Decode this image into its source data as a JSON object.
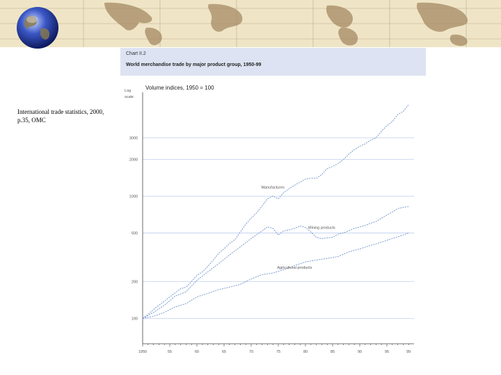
{
  "source_note": "International trade statistics, 2000, p.35, OMC",
  "chart_data": {
    "number": "Chart II.2",
    "title": "World merchandise trade by major product group, 1950-99",
    "subtitle": "Volume indices, 1950 = 100",
    "ylabel": "Log scale",
    "type": "line",
    "yscale": "log",
    "ylim": [
      62,
      6700
    ],
    "xlim": [
      1950,
      2000
    ],
    "grid": true,
    "y_ticks": [
      100,
      200,
      500,
      1000,
      2000,
      3000
    ],
    "y_tick_labels": [
      "100",
      "200",
      "500",
      "1000",
      "2000",
      "3000"
    ],
    "x_ticks": [
      1950,
      1955,
      1960,
      1965,
      1970,
      1975,
      1980,
      1985,
      1990,
      1995,
      2000
    ],
    "x_tick_labels": [
      "1950",
      "55",
      "60",
      "65",
      "70",
      "75",
      "80",
      "85",
      "90",
      "95",
      "99"
    ],
    "series": [
      {
        "name": "Manufactures",
        "color": "#6b8fc9",
        "points": [
          [
            1950,
            100
          ],
          [
            1951,
            108
          ],
          [
            1952,
            118
          ],
          [
            1953,
            128
          ],
          [
            1954,
            138
          ],
          [
            1955,
            150
          ],
          [
            1956,
            162
          ],
          [
            1957,
            175
          ],
          [
            1958,
            180
          ],
          [
            1959,
            200
          ],
          [
            1960,
            225
          ],
          [
            1961,
            240
          ],
          [
            1962,
            265
          ],
          [
            1963,
            300
          ],
          [
            1964,
            340
          ],
          [
            1965,
            370
          ],
          [
            1966,
            410
          ],
          [
            1967,
            440
          ],
          [
            1968,
            510
          ],
          [
            1969,
            590
          ],
          [
            1970,
            660
          ],
          [
            1971,
            730
          ],
          [
            1972,
            830
          ],
          [
            1973,
            950
          ],
          [
            1974,
            1000
          ],
          [
            1975,
            950
          ],
          [
            1976,
            1070
          ],
          [
            1977,
            1150
          ],
          [
            1978,
            1230
          ],
          [
            1979,
            1300
          ],
          [
            1980,
            1380
          ],
          [
            1981,
            1400
          ],
          [
            1982,
            1400
          ],
          [
            1983,
            1500
          ],
          [
            1984,
            1680
          ],
          [
            1985,
            1750
          ],
          [
            1986,
            1850
          ],
          [
            1987,
            1990
          ],
          [
            1988,
            2210
          ],
          [
            1989,
            2400
          ],
          [
            1990,
            2560
          ],
          [
            1991,
            2680
          ],
          [
            1992,
            2870
          ],
          [
            1993,
            3000
          ],
          [
            1994,
            3390
          ],
          [
            1995,
            3770
          ],
          [
            1996,
            4070
          ],
          [
            1997,
            4650
          ],
          [
            1998,
            4920
          ],
          [
            1999,
            5600
          ]
        ]
      },
      {
        "name": "Mining products",
        "color": "#6b8fc9",
        "points": [
          [
            1950,
            100
          ],
          [
            1952,
            112
          ],
          [
            1954,
            128
          ],
          [
            1956,
            152
          ],
          [
            1958,
            165
          ],
          [
            1960,
            205
          ],
          [
            1962,
            240
          ],
          [
            1964,
            280
          ],
          [
            1966,
            330
          ],
          [
            1968,
            385
          ],
          [
            1970,
            450
          ],
          [
            1972,
            520
          ],
          [
            1973,
            560
          ],
          [
            1974,
            545
          ],
          [
            1975,
            480
          ],
          [
            1976,
            520
          ],
          [
            1977,
            530
          ],
          [
            1978,
            545
          ],
          [
            1979,
            570
          ],
          [
            1980,
            555
          ],
          [
            1981,
            510
          ],
          [
            1982,
            460
          ],
          [
            1983,
            450
          ],
          [
            1984,
            455
          ],
          [
            1985,
            460
          ],
          [
            1986,
            490
          ],
          [
            1987,
            500
          ],
          [
            1988,
            520
          ],
          [
            1989,
            545
          ],
          [
            1990,
            560
          ],
          [
            1991,
            575
          ],
          [
            1992,
            600
          ],
          [
            1993,
            620
          ],
          [
            1994,
            660
          ],
          [
            1995,
            700
          ],
          [
            1996,
            740
          ],
          [
            1997,
            790
          ],
          [
            1998,
            810
          ],
          [
            1999,
            820
          ]
        ]
      },
      {
        "name": "Agricultural products",
        "color": "#6b8fc9",
        "points": [
          [
            1950,
            100
          ],
          [
            1952,
            104
          ],
          [
            1954,
            112
          ],
          [
            1956,
            124
          ],
          [
            1958,
            132
          ],
          [
            1960,
            150
          ],
          [
            1962,
            160
          ],
          [
            1964,
            172
          ],
          [
            1966,
            180
          ],
          [
            1968,
            190
          ],
          [
            1970,
            210
          ],
          [
            1972,
            228
          ],
          [
            1974,
            235
          ],
          [
            1976,
            250
          ],
          [
            1978,
            270
          ],
          [
            1980,
            290
          ],
          [
            1982,
            300
          ],
          [
            1984,
            310
          ],
          [
            1986,
            320
          ],
          [
            1988,
            350
          ],
          [
            1990,
            370
          ],
          [
            1992,
            395
          ],
          [
            1994,
            420
          ],
          [
            1996,
            450
          ],
          [
            1998,
            480
          ],
          [
            1999,
            500
          ]
        ]
      }
    ],
    "annotations": [
      {
        "text": "Manufactures",
        "x": 1974,
        "y": 1150
      },
      {
        "text": "Mining products",
        "x": 1983,
        "y": 540
      },
      {
        "text": "Agricultural products",
        "x": 1978,
        "y": 255
      }
    ]
  }
}
